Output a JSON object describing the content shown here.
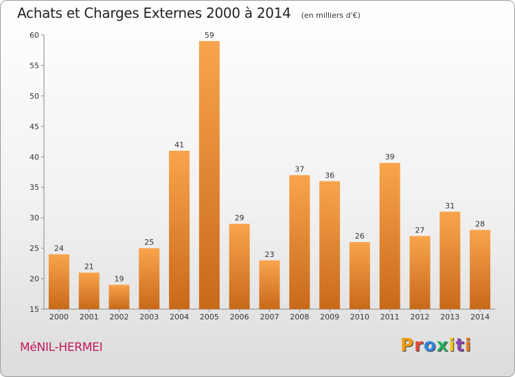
{
  "header": {
    "title": "Achats et Charges Externes 2000 à 2014",
    "unit": "(en milliers d'€)"
  },
  "footer": {
    "commune": "MéNIL-HERMEI",
    "brand": "Proxiti"
  },
  "colors": {
    "bar_light": "#f9a44c",
    "bar_dark": "#c8691a",
    "commune_text": "#c2185b",
    "brand_letters": [
      "#f39c12",
      "#e74c3c",
      "#2e86de",
      "#27ae60",
      "#f1c40f",
      "#8e44ad",
      "#e67e22"
    ]
  },
  "chart_data": {
    "type": "bar",
    "categories": [
      "2000",
      "2001",
      "2002",
      "2003",
      "2004",
      "2005",
      "2006",
      "2007",
      "2008",
      "2009",
      "2010",
      "2011",
      "2012",
      "2013",
      "2014"
    ],
    "values": [
      24,
      21,
      19,
      25,
      41,
      59,
      29,
      23,
      37,
      36,
      26,
      39,
      27,
      31,
      28
    ],
    "ylim": [
      15,
      60
    ],
    "yticks": [
      15,
      20,
      25,
      30,
      35,
      40,
      45,
      50,
      55,
      60
    ],
    "grid": false,
    "data_labels": true
  }
}
